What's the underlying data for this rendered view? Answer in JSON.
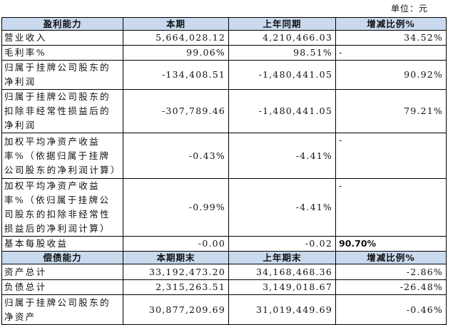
{
  "unit": "单位：元",
  "table": {
    "header": [
      "盈利能力",
      "本期",
      "上年同期",
      "增减比例%"
    ],
    "rows": [
      [
        "营业收入",
        "5,664,028.12",
        "4,210,466.03",
        "34.52%"
      ],
      [
        "毛利率%",
        "99.06%",
        "98.51%",
        "-"
      ],
      [
        "归属于挂牌公司股东的净利润",
        "-134,408.51",
        "-1,480,441.05",
        "90.92%"
      ],
      [
        "归属于挂牌公司股东的扣除非经常性损益后的净利润",
        "-307,789.46",
        "-1,480,441.05",
        "79.21%"
      ],
      [
        "加权平均净资产收益率%（依据归属于挂牌公司股东的净利润计算）",
        "-0.43%",
        "-4.41%",
        "-"
      ],
      [
        "加权平均净资产收益率%（依归属于挂牌公司股东的扣除非经常性损益后的净利润计算）",
        "-0.99%",
        "-4.41%",
        "-"
      ],
      [
        "基本每股收益",
        "-0.00",
        "-0.02",
        "90.70%"
      ]
    ],
    "header2": [
      "偿债能力",
      "本期期末",
      "上年期末",
      "增减比例%"
    ],
    "rows2": [
      [
        "资产总计",
        "33,192,473.20",
        "34,168,468.36",
        "-2.86%"
      ],
      [
        "负债总计",
        "2,315,263.51",
        "3,149,018.67",
        "-26.48%"
      ],
      [
        "归属于挂牌公司股东的净资产",
        "30,877,209.69",
        "31,019,449.69",
        "-0.46%"
      ]
    ]
  }
}
